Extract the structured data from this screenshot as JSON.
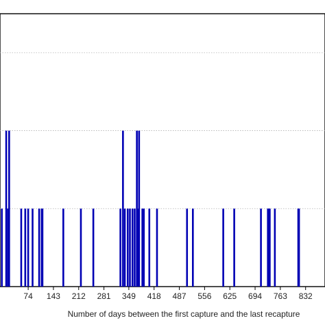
{
  "chart_data": {
    "type": "bar",
    "title": "",
    "xlabel": "Number of days between the first capture and the last recapture",
    "ylabel": "",
    "x_ticks": [
      "74",
      "143",
      "212",
      "281",
      "349",
      "418",
      "487",
      "556",
      "625",
      "694",
      "763",
      "832"
    ],
    "x_tick_values": [
      74,
      143,
      212,
      281,
      349,
      418,
      487,
      556,
      625,
      694,
      763,
      832
    ],
    "xlim": [
      -3,
      885
    ],
    "ylim": [
      0,
      3.5
    ],
    "grid": "horizontal dashed",
    "bar_color": "#0000b4",
    "series": [
      {
        "x": [
          2,
          14,
          19,
          22,
          55,
          66,
          74,
          86,
          104,
          111,
          113,
          170,
          218,
          252,
          326,
          333,
          338,
          346,
          352,
          359,
          365,
          371,
          374,
          377,
          386,
          390,
          405,
          426,
          508,
          524,
          607,
          637,
          710,
          729,
          731,
          734,
          748,
          812,
          814
        ],
        "values": [
          1,
          2,
          1,
          2,
          1,
          1,
          1,
          1,
          1,
          1,
          1,
          1,
          1,
          1,
          1,
          2,
          1,
          1,
          1,
          1,
          1,
          2,
          1,
          2,
          1,
          1,
          1,
          1,
          1,
          1,
          1,
          1,
          1,
          1,
          1,
          1,
          1,
          1,
          1
        ]
      }
    ]
  }
}
